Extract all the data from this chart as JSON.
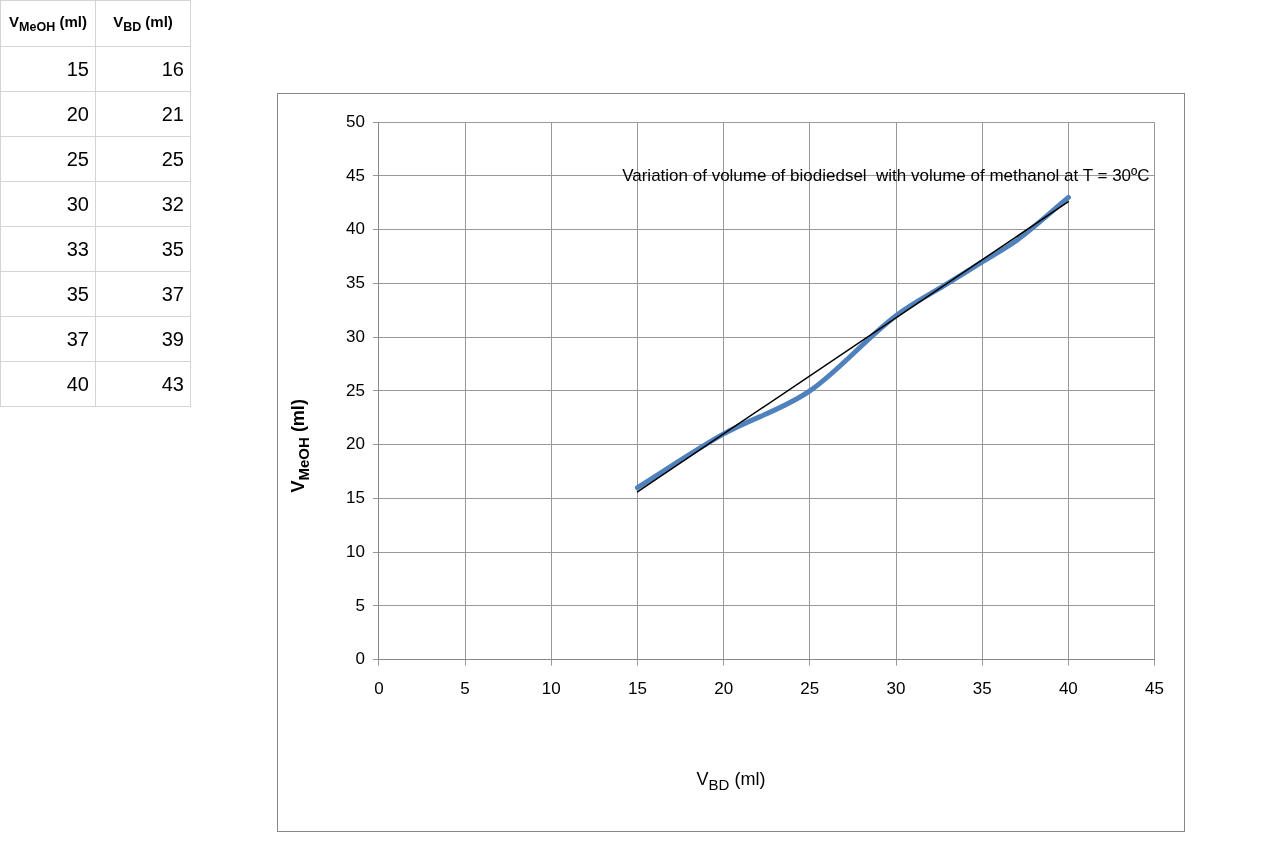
{
  "chart_data": [
    {
      "type": "other",
      "annotations": [
        "V$_{MeOH}$ (ml)",
        "V$_{BD}$ (ml)",
        "15",
        "16",
        "20",
        "21",
        "25",
        "25",
        "30",
        "32",
        "33",
        "35",
        "35",
        "37",
        "37",
        "39",
        "40",
        "43"
      ]
    },
    {
      "type": "line",
      "title": "Variation of volume of biodiedsel  with volume of methanol at T = 30ºC",
      "xlabel": "V$_{BD}$ (ml)",
      "ylabel": "V$_{MeOH}$ (ml)",
      "x": [
        15,
        20,
        25,
        30,
        33,
        35,
        37,
        40
      ],
      "series": [
        {
          "color": "#4f81bd",
          "values": [
            16,
            21,
            25,
            32,
            35,
            37,
            39,
            43
          ]
        },
        {
          "type": "line",
          "color": "#000000",
          "x": [
            15,
            40
          ],
          "values": [
            15.6,
            42.6
          ]
        }
      ],
      "xlim": [
        0,
        45
      ],
      "xticks": [
        0,
        5,
        10,
        15,
        20,
        25,
        30,
        35,
        40,
        45
      ],
      "ylim": [
        0,
        50
      ],
      "yticks": [
        0,
        5,
        10,
        15,
        20,
        25,
        30,
        35,
        40,
        45,
        50
      ],
      "grid": true,
      "legend": false,
      "marker": "none",
      "line_style": "solid"
    }
  ]
}
